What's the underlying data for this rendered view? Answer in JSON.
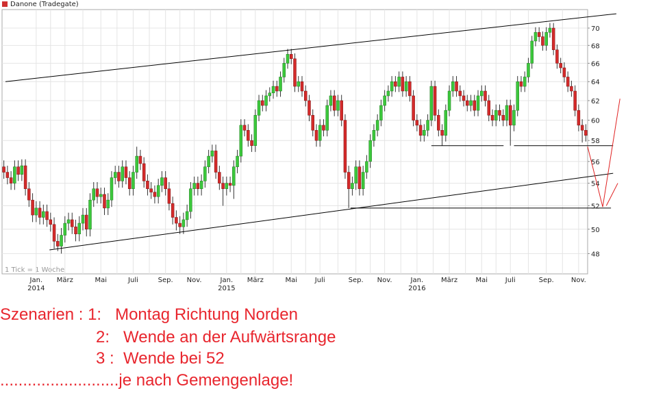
{
  "chart_data": {
    "type": "candlestick",
    "title": "Danone (Tradegate)",
    "legend_color": "#d03030",
    "note": "1 Tick = 1 Woche",
    "categories": [
      null,
      null,
      null,
      null,
      null,
      null,
      null,
      null,
      null,
      "Jan.\n2014",
      null,
      null,
      null,
      null,
      null,
      null,
      null,
      "März",
      null,
      null,
      null,
      null,
      null,
      null,
      null,
      null,
      null,
      "Mai",
      null,
      null,
      null,
      null,
      null,
      null,
      null,
      null,
      "Juli",
      null,
      null,
      null,
      null,
      null,
      null,
      null,
      null,
      "Sep.",
      null,
      null,
      null,
      null,
      null,
      null,
      null,
      "Nov.",
      null,
      null,
      null,
      null,
      null,
      null,
      null,
      null,
      "Jan.\n2015",
      null,
      null,
      null,
      null,
      null,
      null,
      null,
      "März",
      null,
      null,
      null,
      null,
      null,
      null,
      null,
      null,
      null,
      "Mai",
      null,
      null,
      null,
      null,
      null,
      null,
      null,
      "Juli",
      null,
      null,
      null,
      null,
      null,
      null,
      null,
      null,
      null,
      "Sep.",
      null,
      null,
      null,
      null,
      null,
      null,
      null,
      "Nov.",
      null,
      null,
      null,
      null,
      null,
      null,
      null,
      null,
      "Jan.\n2016",
      null,
      null,
      null,
      null,
      null,
      null,
      null,
      null,
      "März",
      null,
      null,
      null,
      null,
      null,
      null,
      null,
      null,
      "Mai",
      null,
      null,
      null,
      null,
      null,
      null,
      null,
      "Juli",
      null,
      null,
      null,
      null,
      null,
      null,
      null,
      null,
      null,
      "Sep.",
      null,
      null,
      null,
      null,
      null,
      null,
      null,
      null,
      "Nov.",
      null,
      null
    ],
    "open": [
      55.5,
      55.0,
      54.5,
      54.0,
      55.5,
      54.8,
      55.6,
      53.5,
      52.5,
      51.2,
      51.8,
      51.0,
      51.5,
      50.8,
      50.4,
      49.0,
      48.6,
      49.5,
      50.5,
      50.8,
      50.2,
      49.6,
      50.5,
      51.2,
      50.0,
      52.5,
      53.5,
      52.8,
      53.0,
      51.8,
      52.5,
      54.5,
      55.0,
      54.2,
      55.5,
      54.5,
      53.5,
      55.0,
      56.5,
      55.8,
      54.2,
      53.5,
      53.2,
      52.8,
      53.8,
      54.5,
      53.5,
      52.2,
      51.0,
      50.5,
      50.2,
      50.8,
      51.5,
      53.5,
      54.0,
      53.5,
      54.2,
      55.5,
      56.5,
      57.0,
      55.0,
      54.0,
      53.5,
      54.0,
      53.8,
      55.5,
      56.5,
      59.5,
      59.0,
      58.0,
      57.5,
      60.5,
      62.0,
      61.5,
      62.5,
      62.8,
      63.5,
      63.0,
      64.5,
      66.0,
      67.0,
      66.5,
      63.5,
      64.0,
      63.0,
      62.0,
      60.5,
      59.0,
      58.0,
      59.5,
      59.0,
      61.5,
      62.5,
      61.0,
      62.0,
      60.0,
      55.0,
      53.5,
      54.0,
      55.5,
      53.5,
      55.0,
      56.0,
      58.0,
      59.0,
      60.0,
      61.5,
      62.5,
      63.0,
      64.0,
      63.5,
      64.5,
      63.0,
      64.0,
      62.5,
      60.0,
      59.5,
      58.5,
      59.0,
      60.0,
      63.5,
      60.5,
      59.0,
      58.5,
      61.0,
      63.0,
      64.0,
      63.0,
      62.5,
      62.0,
      61.5,
      62.0,
      61.0,
      62.5,
      63.0,
      62.0,
      60.5,
      60.0,
      61.0,
      60.5,
      60.0,
      61.5,
      59.5,
      61.0,
      64.0,
      63.5,
      64.5,
      66.0,
      68.5,
      69.5,
      69.0,
      68.0,
      69.5,
      70.0,
      67.5,
      66.0,
      65.5,
      64.5,
      63.5,
      63.0,
      61.0,
      59.5,
      59.0
    ],
    "high": [
      56.1,
      55.6,
      55.1,
      56.1,
      56.1,
      56.2,
      56.2,
      54.1,
      53.1,
      52.4,
      52.4,
      52.1,
      52.1,
      51.4,
      51.0,
      49.6,
      50.1,
      51.1,
      51.4,
      51.4,
      50.8,
      51.1,
      51.8,
      51.8,
      53.1,
      54.1,
      54.1,
      53.6,
      53.6,
      53.1,
      55.1,
      55.6,
      55.6,
      56.1,
      56.1,
      55.1,
      55.6,
      57.4,
      57.1,
      56.4,
      54.8,
      54.1,
      53.8,
      54.4,
      55.1,
      55.1,
      54.1,
      52.8,
      51.6,
      51.1,
      51.4,
      52.1,
      54.1,
      54.6,
      54.6,
      54.8,
      56.1,
      57.1,
      57.6,
      57.6,
      55.6,
      54.6,
      54.6,
      54.6,
      56.1,
      57.1,
      60.1,
      60.1,
      59.6,
      58.6,
      61.1,
      62.6,
      62.6,
      63.1,
      63.4,
      64.1,
      64.1,
      65.1,
      66.6,
      67.6,
      67.6,
      67.1,
      64.6,
      64.6,
      63.6,
      62.6,
      61.1,
      59.6,
      60.1,
      60.1,
      62.1,
      63.1,
      63.1,
      62.6,
      62.6,
      60.6,
      55.6,
      54.6,
      56.1,
      56.1,
      55.6,
      56.6,
      58.6,
      59.6,
      60.6,
      62.1,
      63.1,
      63.6,
      64.6,
      64.6,
      65.1,
      65.1,
      64.6,
      64.6,
      63.1,
      60.6,
      60.1,
      59.6,
      60.6,
      64.1,
      64.1,
      61.1,
      59.6,
      61.6,
      63.6,
      64.6,
      64.6,
      63.6,
      63.1,
      62.6,
      62.6,
      62.6,
      63.1,
      63.6,
      63.6,
      62.6,
      61.1,
      61.6,
      61.6,
      61.1,
      62.1,
      62.1,
      61.6,
      64.6,
      64.6,
      65.1,
      66.6,
      69.1,
      70.1,
      70.1,
      69.6,
      70.1,
      70.6,
      70.6,
      68.1,
      66.6,
      66.1,
      65.1,
      64.1,
      63.6,
      61.6,
      60.1,
      59.6
    ],
    "low": [
      54.4,
      53.9,
      53.4,
      53.4,
      54.2,
      54.2,
      52.9,
      51.9,
      50.6,
      50.6,
      50.4,
      50.4,
      50.2,
      49.8,
      48.4,
      48.2,
      48.0,
      48.9,
      49.9,
      49.6,
      49.0,
      49.0,
      49.9,
      49.4,
      49.4,
      51.9,
      52.2,
      52.2,
      51.2,
      51.2,
      51.9,
      53.9,
      53.6,
      53.6,
      53.9,
      52.9,
      52.9,
      54.4,
      55.2,
      53.6,
      52.9,
      52.6,
      52.2,
      52.2,
      53.2,
      52.9,
      51.6,
      50.4,
      49.9,
      49.6,
      49.6,
      50.2,
      50.9,
      52.9,
      52.9,
      52.9,
      53.6,
      54.9,
      55.9,
      54.4,
      53.4,
      52.0,
      52.9,
      53.2,
      52.6,
      54.9,
      55.9,
      58.4,
      57.4,
      56.9,
      56.9,
      59.9,
      60.9,
      60.9,
      61.9,
      62.2,
      62.4,
      62.4,
      63.9,
      65.4,
      65.9,
      62.9,
      62.9,
      62.4,
      61.4,
      59.9,
      58.4,
      57.4,
      57.4,
      58.4,
      58.4,
      60.9,
      60.4,
      60.4,
      59.4,
      54.4,
      51.8,
      52.9,
      53.4,
      52.9,
      52.9,
      54.4,
      55.4,
      57.4,
      58.4,
      59.4,
      60.9,
      61.9,
      62.4,
      62.9,
      62.9,
      62.4,
      62.4,
      61.9,
      59.4,
      58.9,
      57.9,
      57.9,
      58.4,
      59.4,
      59.9,
      58.4,
      57.5,
      57.9,
      60.4,
      62.4,
      62.4,
      61.9,
      61.4,
      60.9,
      60.9,
      60.4,
      60.4,
      61.9,
      61.4,
      59.9,
      59.4,
      59.4,
      59.9,
      59.4,
      59.4,
      57.5,
      58.9,
      60.4,
      62.9,
      62.9,
      63.9,
      65.4,
      67.9,
      68.4,
      67.4,
      67.4,
      68.9,
      66.9,
      65.4,
      64.9,
      63.9,
      62.9,
      62.4,
      60.4,
      58.9,
      57.8,
      57.9
    ],
    "close": [
      55.0,
      54.5,
      54.0,
      55.5,
      54.8,
      55.6,
      53.5,
      52.5,
      51.2,
      51.8,
      51.0,
      51.5,
      50.8,
      50.4,
      49.0,
      48.6,
      49.5,
      50.5,
      50.8,
      50.2,
      49.6,
      50.5,
      51.2,
      50.0,
      52.5,
      53.5,
      52.8,
      53.0,
      51.8,
      52.5,
      54.5,
      55.0,
      54.2,
      55.5,
      54.5,
      53.5,
      55.0,
      56.5,
      55.8,
      54.2,
      53.5,
      53.2,
      52.8,
      53.8,
      54.5,
      53.5,
      52.2,
      51.0,
      50.5,
      50.2,
      50.8,
      51.5,
      53.5,
      54.0,
      53.5,
      54.2,
      55.5,
      56.5,
      57.0,
      55.0,
      54.0,
      53.5,
      54.0,
      53.8,
      55.5,
      56.5,
      59.5,
      59.0,
      58.0,
      57.5,
      60.5,
      62.0,
      61.5,
      62.5,
      62.8,
      63.5,
      63.0,
      64.5,
      66.0,
      67.0,
      66.5,
      63.5,
      64.0,
      63.0,
      62.0,
      60.5,
      59.0,
      58.0,
      59.5,
      59.0,
      61.5,
      62.5,
      61.0,
      62.0,
      60.0,
      55.0,
      53.5,
      54.0,
      55.5,
      53.5,
      55.0,
      56.0,
      58.0,
      59.0,
      60.0,
      61.5,
      62.5,
      63.0,
      64.0,
      63.5,
      64.5,
      63.0,
      64.0,
      62.5,
      60.0,
      59.5,
      58.5,
      59.0,
      60.0,
      63.5,
      60.5,
      59.0,
      58.5,
      61.0,
      63.0,
      64.0,
      63.0,
      62.5,
      62.0,
      61.5,
      62.0,
      61.0,
      62.5,
      63.0,
      62.0,
      60.5,
      60.0,
      61.0,
      60.5,
      60.0,
      61.5,
      59.5,
      61.0,
      64.0,
      63.5,
      64.5,
      66.0,
      68.5,
      69.5,
      69.0,
      68.0,
      69.5,
      70.0,
      67.5,
      66.0,
      65.5,
      64.5,
      63.5,
      63.0,
      61.0,
      59.5,
      59.0,
      58.5
    ],
    "up_color": "#3cc83c",
    "down_color": "#d42a2a",
    "ylim": [
      46.4,
      72.2
    ],
    "yticks": [
      48,
      50,
      52,
      54,
      56,
      58,
      60,
      62,
      64,
      66,
      68,
      70
    ],
    "log_scale": true,
    "grid": true,
    "lines": [
      {
        "x": [
          0.45,
          170.5
        ],
        "y": [
          64.0,
          71.7
        ],
        "color": "#000000"
      },
      {
        "x": [
          12.7,
          169.6
        ],
        "y": [
          48.3,
          54.9
        ],
        "color": "#000000"
      },
      {
        "x": [
          119.0,
          139.1
        ],
        "y": [
          57.5,
          57.5
        ],
        "color": "#000000"
      },
      {
        "x": [
          142.0,
          169.6
        ],
        "y": [
          57.5,
          57.5
        ],
        "color": "#000000"
      },
      {
        "x": [
          96.5,
          169.0
        ],
        "y": [
          51.8,
          51.8
        ],
        "color": "#000000"
      },
      {
        "x": [
          162.5,
          166.7
        ],
        "y": [
          57.4,
          51.9
        ],
        "color": "#e02020"
      },
      {
        "x": [
          166.7,
          171.5
        ],
        "y": [
          51.9,
          62.2
        ],
        "color": "#e02020"
      },
      {
        "x": [
          167.7,
          170.9
        ],
        "y": [
          52.0,
          54.0
        ],
        "color": "#e02020"
      }
    ]
  },
  "annotations": {
    "color": "#e8262e",
    "lines": [
      "Szenarien : 1:   Montag Richtung Norden",
      "2:   Wende an der Aufwärtsrange",
      "3 :  Wende bei 52",
      "..........................je nach Gemengenlage!"
    ]
  }
}
